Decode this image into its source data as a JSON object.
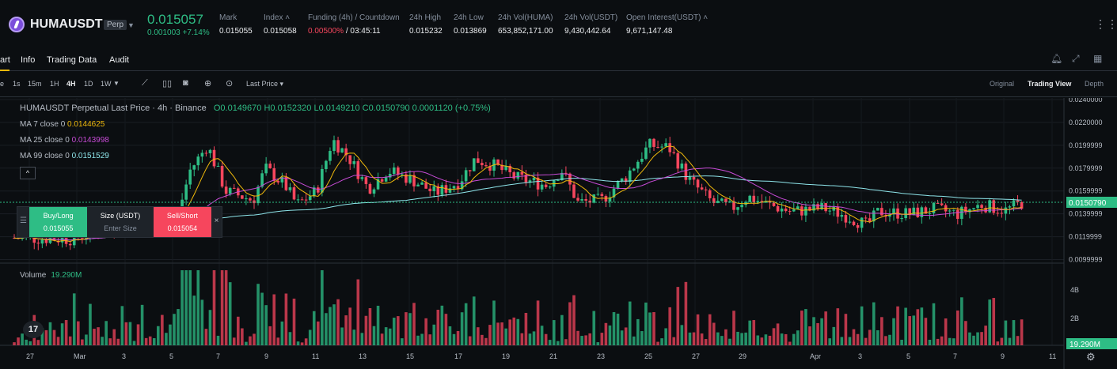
{
  "ticker": {
    "symbol": "HUMAUSDT",
    "badge": "Perp",
    "last_price": "0.015057",
    "change": "0.001003 +7.14%",
    "stats": [
      {
        "label": "Mark",
        "value": "0.015055"
      },
      {
        "label": "Index",
        "value": "0.015058"
      },
      {
        "label": "Funding (4h) / Countdown",
        "value_red": "0.00500%",
        "value": "/ 03:45:11"
      },
      {
        "label": "24h High",
        "value": "0.015232"
      },
      {
        "label": "24h Low",
        "value": "0.013869"
      },
      {
        "label": "24h Vol(HUMA)",
        "value": "653,852,171.00"
      },
      {
        "label": "24h Vol(USDT)",
        "value": "9,430,442.64"
      },
      {
        "label": "Open Interest(USDT)",
        "value": "9,671,147.48"
      }
    ]
  },
  "tabs": [
    "art",
    "Info",
    "Trading Data",
    "Audit"
  ],
  "toolbar": {
    "intervals": [
      "e",
      "1s",
      "15m",
      "1H",
      "4H",
      "1D",
      "1W"
    ],
    "active_interval": "4H",
    "price_type": "Last Price",
    "views": [
      "Original",
      "Trading View",
      "Depth"
    ],
    "active_view": "Trading View"
  },
  "legend": {
    "title": "HUMAUSDT Perpetual Last Price · 4h · Binance",
    "ohlc": "O0.0149670 H0.0152320 L0.0149210 C0.0150790 0.0001120 (+0.75%)",
    "ma7_label": "MA 7 close 0",
    "ma7_value": "0.0144625",
    "ma25_label": "MA 25 close 0",
    "ma25_value": "0.0143998",
    "ma99_label": "MA 99 close 0",
    "ma99_value": "0.0151529",
    "collapse": "^"
  },
  "trade_panel": {
    "buy_label": "Buy/Long",
    "buy_price": "0.015055",
    "size_label": "Size (USDT)",
    "size_placeholder": "Enter Size",
    "sell_label": "Sell/Short",
    "sell_price": "0.015054",
    "close": "×"
  },
  "volume": {
    "label": "Volume",
    "value": "19.290M"
  },
  "price_axis": [
    "0.0240000",
    "0.0220000",
    "0.0199999",
    "0.0179999",
    "0.0159999",
    "0.0139999",
    "0.0119999",
    "0.0099999"
  ],
  "current_price_tag": "0.0150790",
  "volume_axis": [
    "4B",
    "2B"
  ],
  "volume_tag": "19.290M",
  "time_axis": [
    "27",
    "Mar",
    "3",
    "5",
    "7",
    "9",
    "11",
    "13",
    "15",
    "17",
    "19",
    "21",
    "23",
    "25",
    "27",
    "29",
    "Apr",
    "3",
    "5",
    "7",
    "9",
    "11"
  ],
  "colors": {
    "up": "#2ebd85",
    "down": "#f6465d",
    "accent": "#f0b90b"
  },
  "icons": [
    "humau-logo-icon",
    "chevron-down-icon",
    "more-icon",
    "alert-bell-icon",
    "expand-icon",
    "grid-icon",
    "indicator-icon",
    "candle-type-icon",
    "camera-icon",
    "plus-circle-icon",
    "replay-icon",
    "tradingview-logo-icon",
    "settings-icon"
  ]
}
